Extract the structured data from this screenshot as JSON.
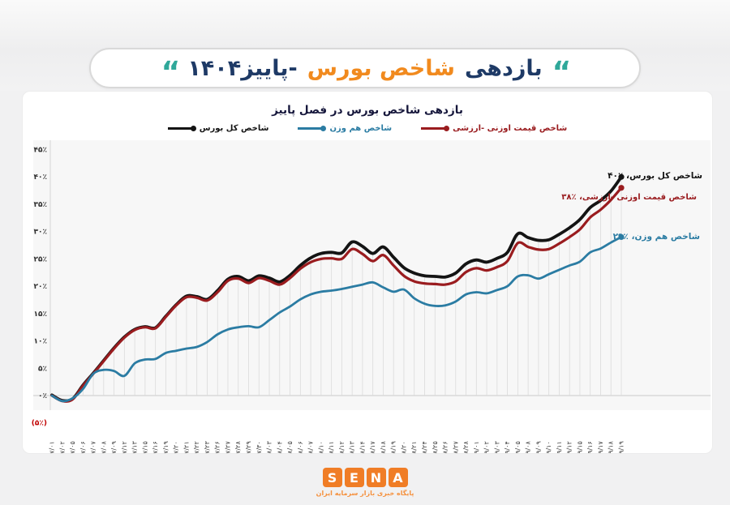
{
  "header": {
    "quote_glyph": "“",
    "title_part1": "بازدهی",
    "title_part2": "شاخص بورس",
    "title_part3": "-پاییز۱۴۰۴",
    "colors": {
      "navy": "#1e3a66",
      "orange": "#f18a1e",
      "teal": "#2fa89a"
    }
  },
  "footer": {
    "letters": [
      "S",
      "E",
      "N",
      "A"
    ],
    "subtitle": "پایگاه خبری بازار سرمایه ایران",
    "logo_color": "#f07d26",
    "subtitle_color": "#f5913e"
  },
  "chart_data": {
    "type": "line",
    "title": "بازدهی شاخص بورس در فصل پاییز",
    "grid": "vertical-drop-lines",
    "legend_position": "top",
    "ylim": [
      -5,
      47
    ],
    "y_ticks": [
      "۴۵٪",
      "۴۰٪",
      "۳۵٪",
      "۳۰٪",
      "۲۵٪",
      "۲۰٪",
      "۱۵٪",
      "۱۰٪",
      "۵٪",
      "۰٪",
      "(۵٪)"
    ],
    "y_tick_values": [
      45,
      40,
      35,
      30,
      25,
      20,
      15,
      10,
      5,
      0,
      -5
    ],
    "negative_tick_color": "#c00000",
    "x": [
      "۱۴۰۴/۰۷/۰۱",
      "۱۴۰۴/۰۷/۰۲",
      "۱۴۰۴/۰۷/۰۵",
      "۱۴۰۴/۰۷/۰۶",
      "۱۴۰۴/۰۷/۰۷",
      "۱۴۰۴/۰۷/۰۸",
      "۱۴۰۴/۰۷/۰۹",
      "۱۴۰۴/۰۷/۱۲",
      "۱۴۰۴/۰۷/۱۳",
      "۱۴۰۴/۰۷/۱۵",
      "۱۴۰۴/۰۷/۱۶",
      "۱۴۰۴/۰۷/۱۹",
      "۱۴۰۴/۰۷/۲۰",
      "۱۴۰۴/۰۷/۲۱",
      "۱۴۰۴/۰۷/۲۲",
      "۱۴۰۴/۰۷/۲۳",
      "۱۴۰۴/۰۷/۲۶",
      "۱۴۰۴/۰۷/۲۷",
      "۱۴۰۴/۰۷/۲۸",
      "۱۴۰۴/۰۷/۲۹",
      "۱۴۰۴/۰۷/۳۰",
      "۱۴۰۴/۰۸/۰۳",
      "۱۴۰۴/۰۸/۰۴",
      "۱۴۰۴/۰۸/۰۵",
      "۱۴۰۴/۰۸/۰۶",
      "۱۴۰۴/۰۸/۰۷",
      "۱۴۰۴/۰۸/۱۰",
      "۱۴۰۴/۰۸/۱۱",
      "۱۴۰۴/۰۸/۱۲",
      "۱۴۰۴/۰۸/۱۳",
      "۱۴۰۴/۰۸/۱۴",
      "۱۴۰۴/۰۸/۱۷",
      "۱۴۰۴/۰۸/۱۸",
      "۱۴۰۴/۰۸/۱۹",
      "۱۴۰۴/۰۸/۲۰",
      "۱۴۰۴/۰۸/۲۱",
      "۱۴۰۴/۰۸/۲۴",
      "۱۴۰۴/۰۸/۲۵",
      "۱۴۰۴/۰۸/۲۶",
      "۱۴۰۴/۰۸/۲۷",
      "۱۴۰۴/۰۸/۲۸",
      "۱۴۰۴/۰۹/۰۱",
      "۱۴۰۴/۰۹/۰۲",
      "۱۴۰۴/۰۹/۰۳",
      "۱۴۰۴/۰۹/۰۴",
      "۱۴۰۴/۰۹/۰۵",
      "۱۴۰۴/۰۹/۰۸",
      "۱۴۰۴/۰۹/۰۹",
      "۱۴۰۴/۰۹/۱۰",
      "۱۴۰۴/۰۹/۱۱",
      "۱۴۰۴/۰۹/۱۲",
      "۱۴۰۴/۰۹/۱۵",
      "۱۴۰۴/۰۹/۱۶",
      "۱۴۰۴/۰۹/۱۷",
      "۱۴۰۴/۰۹/۱۸",
      "۱۴۰۴/۰۹/۱۹"
    ],
    "series": [
      {
        "name": "شاخص کل بورس",
        "color": "#141414",
        "end_value_pct": 40,
        "end_label": "شاخص کل بورس، ٪۴۰",
        "values": [
          0.1,
          -0.9,
          -0.6,
          1.9,
          4.1,
          6.4,
          8.7,
          10.7,
          12.1,
          12.6,
          12.4,
          14.5,
          16.6,
          18.2,
          18.1,
          17.6,
          19.2,
          21.3,
          21.8,
          21.0,
          21.9,
          21.5,
          20.8,
          22.0,
          23.8,
          25.2,
          26.0,
          26.2,
          26.1,
          28.1,
          27.3,
          26.0,
          27.2,
          25.3,
          23.4,
          22.4,
          21.9,
          21.8,
          21.7,
          22.4,
          24.1,
          24.8,
          24.4,
          25.1,
          26.2,
          29.6,
          28.9,
          28.4,
          28.5,
          29.5,
          30.7,
          32.2,
          34.4,
          35.7,
          37.4,
          40.0
        ]
      },
      {
        "name": "شاخص قیمت اوزنی -ارزشی",
        "color": "#9a1c1f",
        "end_value_pct": 38,
        "end_label": "شاخص قیمت اوزنی -ارزشی، ٪۳۸",
        "values": [
          0.0,
          -1.0,
          -0.7,
          1.8,
          4.0,
          6.3,
          8.6,
          10.6,
          12.0,
          12.5,
          12.3,
          14.4,
          16.5,
          18.0,
          17.9,
          17.4,
          18.9,
          21.0,
          21.4,
          20.6,
          21.5,
          21.0,
          20.3,
          21.5,
          23.2,
          24.4,
          25.0,
          25.1,
          25.0,
          26.8,
          25.9,
          24.6,
          25.7,
          23.8,
          21.9,
          20.9,
          20.5,
          20.4,
          20.3,
          20.9,
          22.6,
          23.3,
          22.9,
          23.5,
          24.6,
          27.9,
          27.2,
          26.7,
          26.8,
          27.8,
          29.0,
          30.4,
          32.6,
          34.0,
          35.8,
          38.0
        ]
      },
      {
        "name": "شاخص هم وزن",
        "color": "#2b7ca3",
        "end_value_pct": 29,
        "end_label": "شاخص هم وزن، ٪۲۹",
        "values": [
          0.0,
          -1.0,
          -0.5,
          1.2,
          4.0,
          4.7,
          4.5,
          3.6,
          5.9,
          6.6,
          6.7,
          7.8,
          8.2,
          8.6,
          8.9,
          9.8,
          11.2,
          12.1,
          12.5,
          12.7,
          12.5,
          13.8,
          15.2,
          16.3,
          17.6,
          18.5,
          19.0,
          19.2,
          19.5,
          19.9,
          20.3,
          20.7,
          19.8,
          19.0,
          19.4,
          17.8,
          16.8,
          16.4,
          16.5,
          17.2,
          18.5,
          18.9,
          18.7,
          19.3,
          20.0,
          21.8,
          22.0,
          21.4,
          22.2,
          23.0,
          23.8,
          24.5,
          26.2,
          26.9,
          28.0,
          29.0
        ]
      }
    ],
    "legend": [
      {
        "label": "شاخص کل بورس",
        "color": "#141414"
      },
      {
        "label": "شاخص هم وزن",
        "color": "#2b7ca3"
      },
      {
        "label": "شاخص قیمت اوزنی -ارزشی",
        "color": "#9a1c1f"
      }
    ]
  }
}
